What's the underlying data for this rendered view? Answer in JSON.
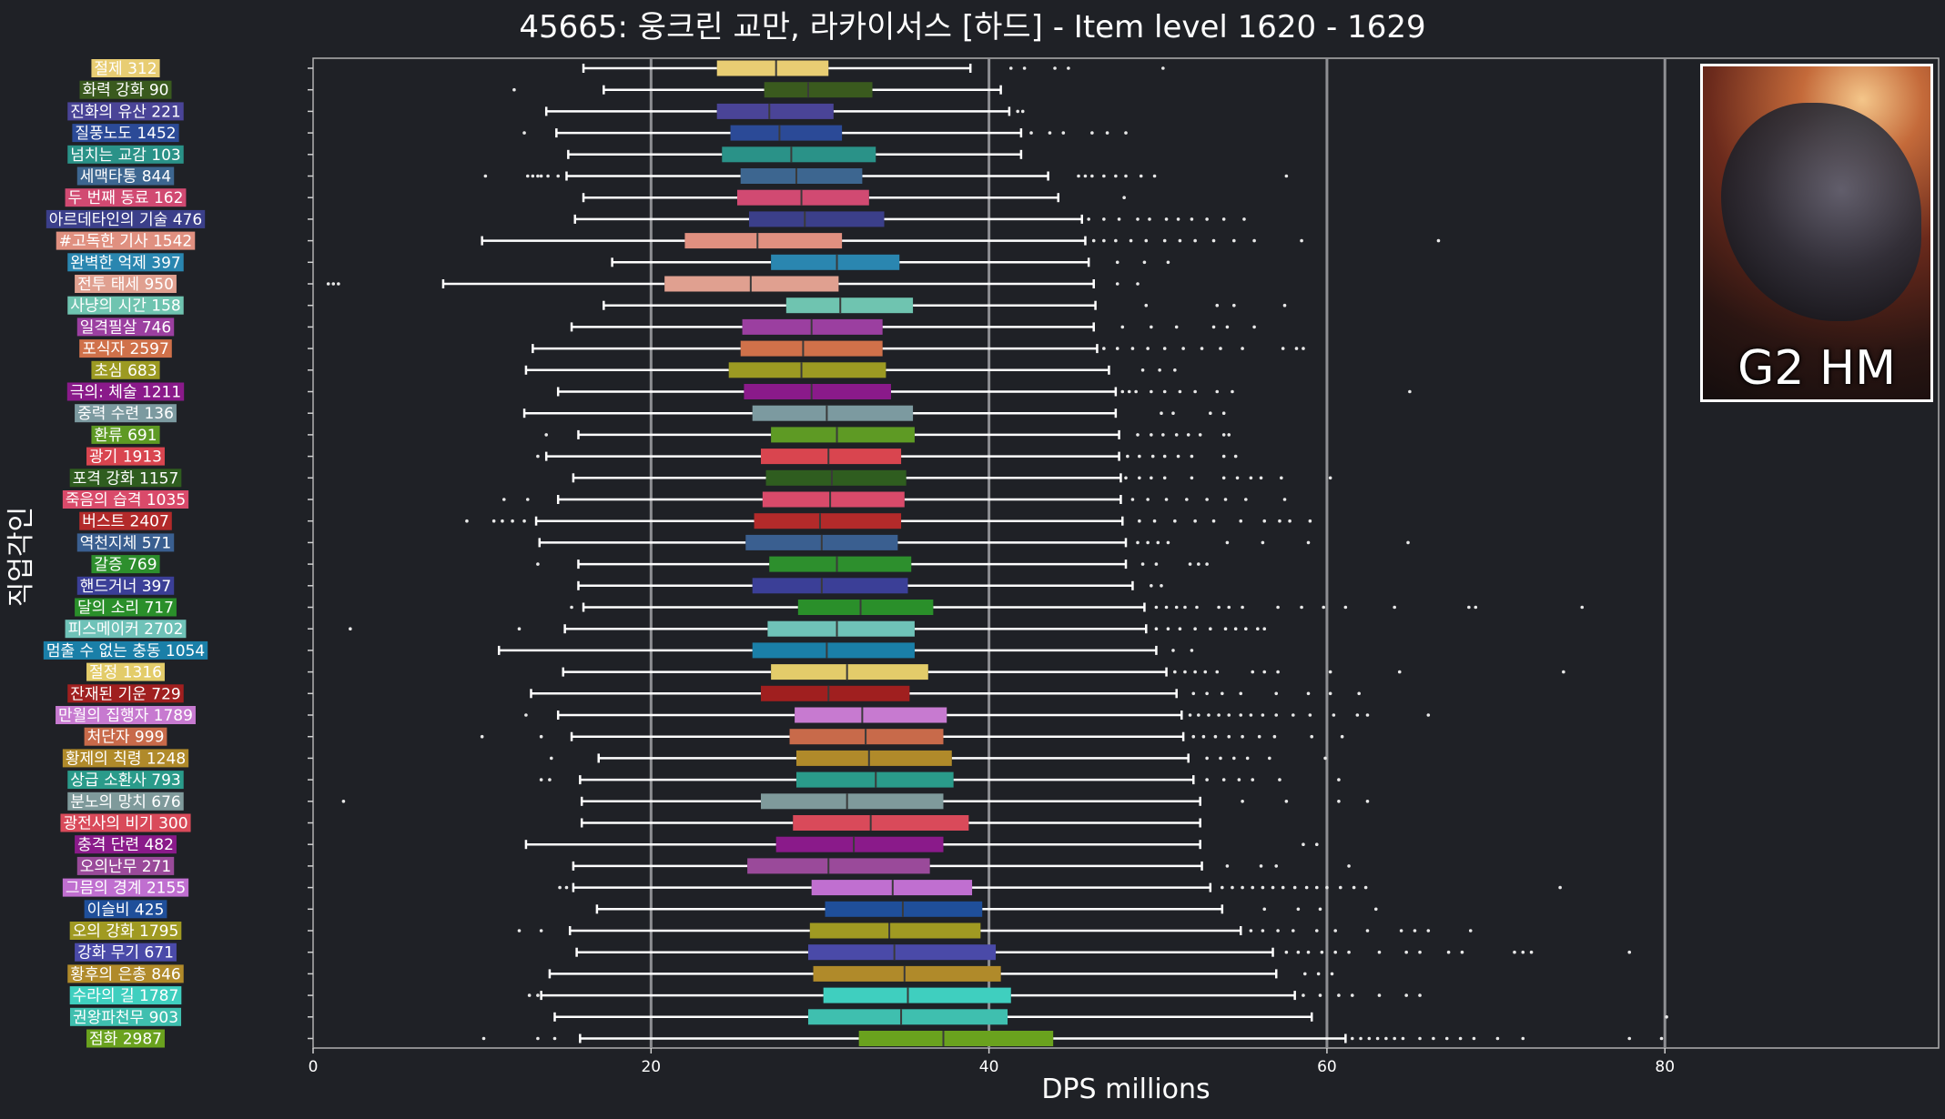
{
  "chart_data": {
    "type": "box",
    "title": "45665: 웅크린 교만, 라카이서스 [하드] - Item level 1620 - 1629",
    "xlabel": "DPS millions",
    "ylabel": "직업각인",
    "xlim": [
      0,
      96.2
    ],
    "xticks": [
      0,
      20,
      40,
      60,
      80
    ],
    "grid": "x-major",
    "legend": "none",
    "badge": "G2 HM",
    "categories": [
      {
        "label": "절제 312",
        "color": "#e8cd73",
        "whislo": 16,
        "q1": 23.9,
        "med": 27.4,
        "q3": 30.5,
        "whishi": 38.9,
        "outliers": [
          41.3,
          42.1,
          43.9,
          44.7,
          50.3
        ]
      },
      {
        "label": "화력 강화 90",
        "color": "#3a5a1e",
        "whislo": 17.2,
        "q1": 26.7,
        "med": 29.3,
        "q3": 33.1,
        "whishi": 40.7,
        "outliers": [
          11.9
        ]
      },
      {
        "label": "진화의 유산 221",
        "color": "#4a4497",
        "whislo": 13.8,
        "q1": 23.9,
        "med": 27.0,
        "q3": 30.8,
        "whishi": 41.2,
        "outliers": [
          41.7,
          42.0
        ]
      },
      {
        "label": "질풍노도 1452",
        "color": "#2b4a97",
        "whislo": 14.4,
        "q1": 24.7,
        "med": 27.6,
        "q3": 31.3,
        "whishi": 41.9,
        "outliers": [
          12.5,
          42.5,
          43.6,
          44.4,
          46.1,
          47.0,
          48.1
        ]
      },
      {
        "label": "넘치는 교감 103",
        "color": "#2a9288",
        "whislo": 15.1,
        "q1": 24.2,
        "med": 28.3,
        "q3": 33.3,
        "whishi": 41.9,
        "outliers": []
      },
      {
        "label": "세맥타통 844",
        "color": "#3d6690",
        "whislo": 15.0,
        "q1": 25.3,
        "med": 28.6,
        "q3": 32.5,
        "whishi": 43.5,
        "outliers": [
          10.2,
          12.7,
          13.0,
          13.3,
          13.5,
          13.9,
          14.5,
          45.3,
          45.7,
          46.1,
          46.8,
          47.5,
          48.1,
          49.0,
          49.8,
          57.6
        ]
      },
      {
        "label": "두 번째 동료 162",
        "color": "#d14a72",
        "whislo": 16.0,
        "q1": 25.1,
        "med": 28.9,
        "q3": 32.9,
        "whishi": 44.1,
        "outliers": [
          48.0
        ]
      },
      {
        "label": "아르데타인의 기술 476",
        "color": "#3b3f8a",
        "whislo": 15.5,
        "q1": 25.8,
        "med": 29.1,
        "q3": 33.8,
        "whishi": 45.5,
        "outliers": [
          45.9,
          46.8,
          47.7,
          48.8,
          49.5,
          50.5,
          51.2,
          52.0,
          52.9,
          53.9,
          55.1
        ]
      },
      {
        "label": "#고독한 기사 1542",
        "color": "#e09080",
        "whislo": 10.0,
        "q1": 22.0,
        "med": 26.3,
        "q3": 31.3,
        "whishi": 45.7,
        "outliers": [
          46.2,
          46.8,
          47.5,
          48.4,
          49.3,
          50.4,
          51.3,
          52.2,
          53.3,
          54.5,
          55.7,
          58.5,
          66.6
        ]
      },
      {
        "label": "완벽한 억제 397",
        "color": "#2a86b0",
        "whislo": 17.7,
        "q1": 27.1,
        "med": 31.0,
        "q3": 34.7,
        "whishi": 45.9,
        "outliers": [
          47.6,
          49.2,
          50.6
        ]
      },
      {
        "label": "전투 태세 950",
        "color": "#e0a090",
        "whislo": 7.7,
        "q1": 20.8,
        "med": 25.9,
        "q3": 31.1,
        "whishi": 46.2,
        "outliers": [
          0.9,
          1.2,
          1.5,
          47.6,
          48.8
        ]
      },
      {
        "label": "사냥의 시간 158",
        "color": "#6fc4b0",
        "whislo": 17.2,
        "q1": 28.0,
        "med": 31.2,
        "q3": 35.5,
        "whishi": 46.3,
        "outliers": [
          49.3,
          53.5,
          54.5,
          57.5
        ]
      },
      {
        "label": "일격필살 746",
        "color": "#9b3fa0",
        "whislo": 15.3,
        "q1": 25.4,
        "med": 29.5,
        "q3": 33.7,
        "whishi": 46.2,
        "outliers": [
          47.9,
          49.6,
          51.1,
          53.3,
          54.1,
          55.7
        ]
      },
      {
        "label": "포식자 2597",
        "color": "#d0714a",
        "whislo": 13.0,
        "q1": 25.3,
        "med": 29.0,
        "q3": 33.7,
        "whishi": 46.4,
        "outliers": [
          46.8,
          47.6,
          48.5,
          49.4,
          50.4,
          51.5,
          52.6,
          53.7,
          55.0,
          57.4,
          58.2,
          58.6
        ]
      },
      {
        "label": "초심 683",
        "color": "#9c9a22",
        "whislo": 12.6,
        "q1": 24.6,
        "med": 28.9,
        "q3": 33.9,
        "whishi": 47.1,
        "outliers": [
          49.1,
          50.1,
          51.0
        ]
      },
      {
        "label": "극의: 체술 1211",
        "color": "#8a1a8a",
        "whislo": 14.5,
        "q1": 25.5,
        "med": 29.5,
        "q3": 34.2,
        "whishi": 47.5,
        "outliers": [
          47.9,
          48.3,
          48.7,
          49.6,
          50.4,
          51.3,
          52.2,
          53.5,
          54.4,
          64.9
        ]
      },
      {
        "label": "중력 수련 136",
        "color": "#7c9aa0",
        "whislo": 12.5,
        "q1": 26.0,
        "med": 30.4,
        "q3": 35.5,
        "whishi": 47.5,
        "outliers": [
          50.2,
          50.9,
          53.1,
          53.9
        ]
      },
      {
        "label": "환류 691",
        "color": "#5e9a24",
        "whislo": 15.7,
        "q1": 27.1,
        "med": 31.0,
        "q3": 35.6,
        "whishi": 47.7,
        "outliers": [
          13.8,
          48.8,
          49.6,
          50.3,
          51.1,
          51.8,
          52.5,
          53.9,
          54.2
        ]
      },
      {
        "label": "광기 1913",
        "color": "#d9454f",
        "whislo": 13.8,
        "q1": 26.5,
        "med": 30.5,
        "q3": 34.8,
        "whishi": 47.7,
        "outliers": [
          13.3,
          48.2,
          48.9,
          49.7,
          50.4,
          51.2,
          52.0,
          53.9,
          54.6
        ]
      },
      {
        "label": "포격 강화 1157",
        "color": "#2f5d1f",
        "whislo": 15.4,
        "q1": 26.8,
        "med": 30.7,
        "q3": 35.1,
        "whishi": 47.8,
        "outliers": [
          48.1,
          48.9,
          49.6,
          50.4,
          52.0,
          53.9,
          54.7,
          55.5,
          56.1,
          57.3,
          60.2
        ]
      },
      {
        "label": "죽음의 습격 1035",
        "color": "#d94a6a",
        "whislo": 14.5,
        "q1": 26.6,
        "med": 30.6,
        "q3": 35.0,
        "whishi": 47.8,
        "outliers": [
          11.3,
          12.7,
          48.5,
          49.4,
          50.5,
          51.7,
          52.9,
          54.0,
          55.2,
          57.5
        ]
      },
      {
        "label": "버스트 2407",
        "color": "#b32a2a",
        "whislo": 13.2,
        "q1": 26.1,
        "med": 30.0,
        "q3": 34.8,
        "whishi": 47.9,
        "outliers": [
          9.1,
          10.7,
          11.2,
          11.8,
          12.5,
          48.9,
          49.8,
          51.0,
          52.2,
          53.3,
          54.9,
          56.3,
          57.2,
          57.8,
          59.0
        ]
      },
      {
        "label": "역천지체 571",
        "color": "#3a5f90",
        "whislo": 13.4,
        "q1": 25.6,
        "med": 30.1,
        "q3": 34.6,
        "whishi": 48.1,
        "outliers": [
          48.8,
          49.4,
          50.0,
          50.6,
          54.1,
          56.2,
          58.9,
          64.8
        ]
      },
      {
        "label": "갈증 769",
        "color": "#2d8f2d",
        "whislo": 15.7,
        "q1": 27.0,
        "med": 31.0,
        "q3": 35.4,
        "whishi": 48.1,
        "outliers": [
          13.3,
          49.1,
          49.9,
          51.9,
          52.4,
          52.9
        ]
      },
      {
        "label": "핸드거너 397",
        "color": "#3b3f97",
        "whislo": 15.7,
        "q1": 26.0,
        "med": 30.1,
        "q3": 35.2,
        "whishi": 48.5,
        "outliers": [
          49.6,
          50.2
        ]
      },
      {
        "label": "달의 소리 717",
        "color": "#2a8f2a",
        "whislo": 16.0,
        "q1": 28.7,
        "med": 32.4,
        "q3": 36.7,
        "whishi": 49.2,
        "outliers": [
          15.3,
          49.9,
          50.5,
          51.1,
          51.6,
          52.3,
          53.6,
          54.2,
          55.0,
          57.1,
          58.5,
          59.8,
          61.1,
          64.0,
          68.4,
          68.8,
          75.1
        ]
      },
      {
        "label": "피스메이커 2702",
        "color": "#6fc2b8",
        "whislo": 14.9,
        "q1": 26.9,
        "med": 31.0,
        "q3": 35.6,
        "whishi": 49.3,
        "outliers": [
          2.2,
          12.2,
          49.9,
          50.6,
          51.3,
          52.2,
          53.1,
          54.0,
          54.6,
          55.2,
          55.9,
          56.3
        ]
      },
      {
        "label": "멈출 수 없는 충동 1054",
        "color": "#1a7fa8",
        "whislo": 11.0,
        "q1": 26.0,
        "med": 30.4,
        "q3": 35.6,
        "whishi": 49.9,
        "outliers": [
          50.9,
          52.0
        ]
      },
      {
        "label": "절정 1316",
        "color": "#e3cc6a",
        "whislo": 14.8,
        "q1": 27.1,
        "med": 31.6,
        "q3": 36.4,
        "whishi": 50.5,
        "outliers": [
          51.0,
          51.6,
          52.2,
          52.8,
          53.5,
          55.6,
          56.3,
          57.1,
          60.2,
          64.3,
          74.0
        ]
      },
      {
        "label": "잔재된 기운 729",
        "color": "#a01f1f",
        "whislo": 12.9,
        "q1": 26.5,
        "med": 30.5,
        "q3": 35.3,
        "whishi": 51.1,
        "outliers": [
          52.1,
          52.9,
          53.8,
          54.9,
          57.0,
          58.9,
          60.2,
          61.9
        ]
      },
      {
        "label": "만월의 집행자 1789",
        "color": "#c77ad0",
        "whislo": 14.5,
        "q1": 28.5,
        "med": 32.5,
        "q3": 37.5,
        "whishi": 51.4,
        "outliers": [
          12.6,
          51.9,
          52.4,
          53.0,
          53.6,
          54.2,
          54.9,
          55.5,
          56.2,
          57.0,
          58.0,
          59.0,
          60.4,
          61.8,
          62.4,
          66.0
        ]
      },
      {
        "label": "처단자 999",
        "color": "#c86a4a",
        "whislo": 15.3,
        "q1": 28.2,
        "med": 32.7,
        "q3": 37.3,
        "whishi": 51.5,
        "outliers": [
          10.0,
          13.5,
          52.1,
          52.7,
          53.4,
          54.2,
          55.0,
          56.0,
          56.9,
          59.1,
          60.9
        ]
      },
      {
        "label": "황제의 칙령 1248",
        "color": "#b08a2a",
        "whislo": 16.9,
        "q1": 28.6,
        "med": 32.9,
        "q3": 37.8,
        "whishi": 51.8,
        "outliers": [
          14.1,
          52.9,
          53.7,
          54.5,
          55.3,
          56.6,
          59.9
        ]
      },
      {
        "label": "상급 소환사 793",
        "color": "#2a9b8a",
        "whislo": 15.8,
        "q1": 28.6,
        "med": 33.3,
        "q3": 37.9,
        "whishi": 52.1,
        "outliers": [
          13.5,
          14.0,
          52.9,
          53.9,
          54.8,
          55.6,
          57.2,
          60.7
        ]
      },
      {
        "label": "분노의 망치 676",
        "color": "#7f9a9b",
        "whislo": 15.9,
        "q1": 26.5,
        "med": 31.6,
        "q3": 37.3,
        "whishi": 52.5,
        "outliers": [
          1.8,
          55.0,
          57.6,
          60.7,
          62.4
        ]
      },
      {
        "label": "광전사의 비기 300",
        "color": "#d94a5a",
        "whislo": 15.9,
        "q1": 28.4,
        "med": 33.0,
        "q3": 38.8,
        "whishi": 52.5,
        "outliers": []
      },
      {
        "label": "충격 단련 482",
        "color": "#8a1a8a",
        "whislo": 12.6,
        "q1": 27.4,
        "med": 32.0,
        "q3": 37.3,
        "whishi": 52.5,
        "outliers": [
          58.6,
          59.4
        ]
      },
      {
        "label": "오의난무 271",
        "color": "#9a4a9a",
        "whislo": 15.4,
        "q1": 25.7,
        "med": 30.5,
        "q3": 36.5,
        "whishi": 52.6,
        "outliers": [
          54.1,
          56.1,
          57.0,
          61.3
        ]
      },
      {
        "label": "그믐의 경계 2155",
        "color": "#c06fd0",
        "whislo": 15.4,
        "q1": 29.5,
        "med": 34.3,
        "q3": 39.0,
        "whishi": 53.1,
        "outliers": [
          14.6,
          15.0,
          53.8,
          54.4,
          55.0,
          55.6,
          56.2,
          56.8,
          57.4,
          58.1,
          58.8,
          59.4,
          60.0,
          60.8,
          61.6,
          62.3,
          73.8
        ]
      },
      {
        "label": "이슬비 425",
        "color": "#1f4f9a",
        "whislo": 16.8,
        "q1": 30.3,
        "med": 34.9,
        "q3": 39.6,
        "whishi": 53.8,
        "outliers": [
          56.3,
          58.3,
          59.6,
          62.9
        ]
      },
      {
        "label": "오의 강화 1795",
        "color": "#a09a22",
        "whislo": 15.2,
        "q1": 29.4,
        "med": 34.1,
        "q3": 39.5,
        "whishi": 54.9,
        "outliers": [
          12.2,
          13.5,
          55.5,
          56.2,
          57.1,
          58.0,
          59.4,
          60.5,
          62.4,
          64.4,
          65.2,
          66.0,
          68.5
        ]
      },
      {
        "label": "강화 무기 671",
        "color": "#4a4aa8",
        "whislo": 15.6,
        "q1": 29.3,
        "med": 34.4,
        "q3": 40.4,
        "whishi": 56.8,
        "outliers": [
          57.6,
          58.3,
          58.9,
          59.7,
          60.5,
          61.3,
          63.1,
          64.7,
          65.5,
          67.2,
          68.0,
          71.1,
          71.6,
          72.1,
          77.9
        ]
      },
      {
        "label": "황후의 은총 846",
        "color": "#b08a2a",
        "whislo": 14.0,
        "q1": 29.6,
        "med": 35.0,
        "q3": 40.7,
        "whishi": 57.0,
        "outliers": [
          58.7,
          59.5,
          60.3
        ]
      },
      {
        "label": "수라의 길 1787",
        "color": "#3fcfbf",
        "whislo": 13.5,
        "q1": 30.2,
        "med": 35.2,
        "q3": 41.3,
        "whishi": 58.1,
        "outliers": [
          12.8,
          13.3,
          58.6,
          59.6,
          60.7,
          61.5,
          63.1,
          64.7,
          65.5
        ]
      },
      {
        "label": "권왕파천무 903",
        "color": "#3fbfaf",
        "whislo": 14.3,
        "q1": 29.3,
        "med": 34.8,
        "q3": 41.1,
        "whishi": 59.1,
        "outliers": [
          80.1
        ]
      },
      {
        "label": "점화 2987",
        "color": "#6aa21e",
        "whislo": 15.8,
        "q1": 32.3,
        "med": 37.3,
        "q3": 43.8,
        "whishi": 61.1,
        "outliers": [
          10.1,
          13.3,
          14.3,
          61.5,
          62.0,
          62.5,
          63.0,
          63.5,
          64.0,
          64.5,
          65.5,
          66.3,
          67.1,
          67.9,
          68.7,
          70.1,
          71.6,
          77.9,
          79.8
        ]
      }
    ]
  }
}
